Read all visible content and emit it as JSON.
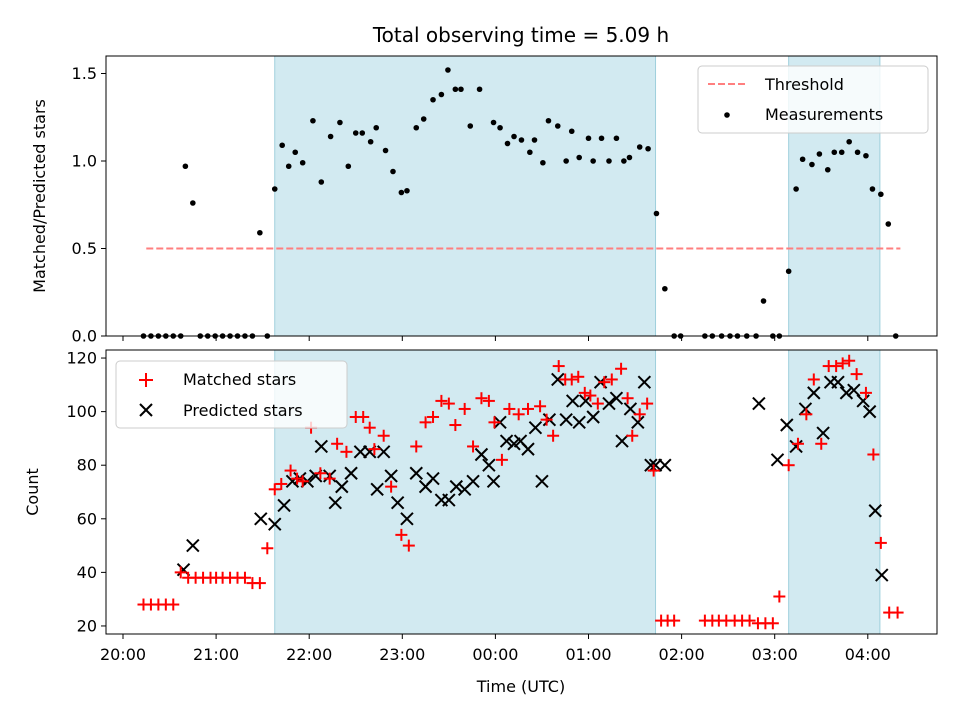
{
  "chart_data": [
    {
      "type": "scatter",
      "title": "Total observing time = 5.09 h",
      "ylabel": "Matched/Predicted stars",
      "xlabel": "",
      "xlim": [
        20.0,
        4.72
      ],
      "ylim": [
        0,
        1.6
      ],
      "yticks": [
        "0.0",
        "0.5",
        "1.0",
        "1.5"
      ],
      "observing_windows": [
        [
          21.63,
          1.72
        ],
        [
          3.15,
          4.13
        ]
      ],
      "shade_color": "#add8e6",
      "threshold": {
        "name": "Threshold",
        "value": 0.5,
        "x_start": 20.25,
        "x_end": 4.35,
        "color": "#ff7f7f",
        "style": "dashed"
      },
      "legend": {
        "placement": "top-right",
        "entries": [
          "Threshold",
          "Measurements"
        ]
      },
      "series": [
        {
          "name": "Measurements",
          "color": "#000000",
          "marker": "dot",
          "x": [
            20.22,
            20.3,
            20.38,
            20.46,
            20.54,
            20.62,
            20.67,
            20.75,
            20.83,
            20.91,
            20.99,
            21.07,
            21.15,
            21.23,
            21.31,
            21.39,
            21.47,
            21.55,
            21.63,
            21.71,
            21.78,
            21.85,
            21.93,
            22.04,
            22.13,
            22.23,
            22.33,
            22.42,
            22.5,
            22.57,
            22.66,
            22.72,
            22.82,
            22.9,
            22.99,
            23.05,
            23.15,
            23.23,
            23.33,
            23.42,
            23.49,
            23.57,
            23.63,
            23.73,
            23.83,
            23.98,
            0.05,
            0.13,
            0.2,
            0.28,
            0.37,
            0.42,
            0.51,
            0.57,
            0.67,
            0.76,
            0.82,
            0.9,
            1.0,
            1.05,
            1.14,
            1.22,
            1.3,
            1.38,
            1.44,
            1.55,
            1.64,
            1.73,
            1.82,
            1.92,
            1.99,
            2.25,
            2.33,
            2.43,
            2.52,
            2.6,
            2.7,
            2.8,
            2.88,
            2.98,
            3.05,
            3.15,
            3.23,
            3.3,
            3.4,
            3.48,
            3.57,
            3.64,
            3.72,
            3.8,
            3.89,
            3.98,
            4.05,
            4.14,
            4.22,
            4.3
          ],
          "y": [
            0.0,
            0.0,
            0.0,
            0.0,
            0.0,
            0.0,
            0.97,
            0.76,
            0.0,
            0.0,
            0.0,
            0.0,
            0.0,
            0.0,
            0.0,
            0.0,
            0.59,
            0.0,
            0.84,
            1.09,
            0.97,
            1.05,
            0.99,
            1.23,
            0.88,
            1.14,
            1.22,
            0.97,
            1.16,
            1.16,
            1.11,
            1.19,
            1.06,
            0.94,
            0.82,
            0.83,
            1.19,
            1.24,
            1.35,
            1.38,
            1.52,
            1.41,
            1.41,
            1.2,
            1.41,
            1.22,
            1.19,
            1.1,
            1.14,
            1.12,
            1.05,
            1.12,
            0.99,
            1.23,
            1.2,
            1.0,
            1.17,
            1.02,
            1.13,
            1.0,
            1.13,
            1.0,
            1.13,
            1.0,
            1.02,
            1.08,
            1.07,
            0.7,
            0.27,
            0.0,
            0.0,
            0.0,
            0.0,
            0.0,
            0.0,
            0.0,
            0.0,
            0.0,
            0.2,
            0.0,
            0.0,
            0.37,
            0.84,
            1.01,
            0.98,
            1.04,
            0.95,
            1.05,
            1.05,
            1.11,
            1.05,
            1.03,
            0.84,
            0.81,
            0.64,
            0.0
          ]
        }
      ]
    },
    {
      "type": "scatter",
      "title": "",
      "xlabel": "Time (UTC)",
      "ylabel": "Count",
      "xlim": [
        20.0,
        4.72
      ],
      "ylim": [
        17,
        123
      ],
      "yticks": [
        "20",
        "40",
        "60",
        "80",
        "100",
        "120"
      ],
      "xticks": [
        "20:00",
        "21:00",
        "22:00",
        "23:00",
        "00:00",
        "01:00",
        "02:00",
        "03:00",
        "04:00"
      ],
      "observing_windows": [
        [
          21.63,
          1.72
        ],
        [
          3.15,
          4.13
        ]
      ],
      "shade_color": "#add8e6",
      "legend": {
        "placement": "top-left",
        "entries": [
          "Matched stars",
          "Predicted stars"
        ]
      },
      "series": [
        {
          "name": "Matched stars",
          "color": "#ff0000",
          "marker": "plus",
          "x": [
            20.22,
            20.3,
            20.38,
            20.46,
            20.54,
            20.62,
            20.7,
            20.78,
            20.86,
            20.94,
            21.0,
            21.07,
            21.15,
            21.23,
            21.31,
            21.39,
            21.47,
            21.55,
            21.63,
            21.7,
            21.8,
            21.87,
            21.93,
            22.02,
            22.12,
            22.22,
            22.3,
            22.4,
            22.5,
            22.58,
            22.65,
            22.7,
            22.8,
            22.88,
            22.99,
            23.07,
            23.15,
            23.25,
            23.33,
            23.42,
            23.5,
            23.57,
            23.67,
            23.76,
            23.85,
            23.93,
            23.99,
            0.07,
            0.15,
            0.25,
            0.35,
            0.48,
            0.55,
            0.62,
            0.68,
            0.75,
            0.82,
            0.89,
            0.96,
            1.02,
            1.1,
            1.17,
            1.25,
            1.35,
            1.42,
            1.47,
            1.55,
            1.63,
            1.7,
            1.78,
            1.85,
            1.92,
            2.25,
            2.33,
            2.4,
            2.48,
            2.57,
            2.65,
            2.73,
            2.82,
            2.9,
            2.98,
            3.05,
            3.15,
            3.25,
            3.34,
            3.42,
            3.5,
            3.58,
            3.66,
            3.73,
            3.8,
            3.88,
            3.98,
            4.06,
            4.14,
            4.23,
            4.32
          ],
          "y": [
            28,
            28,
            28,
            28,
            28,
            40,
            38,
            38,
            38,
            38,
            38,
            38,
            38,
            38,
            38,
            36,
            36,
            49,
            71,
            73,
            78,
            75,
            74,
            94,
            77,
            75,
            88,
            85,
            98,
            98,
            94,
            86,
            91,
            72,
            54,
            50,
            87,
            96,
            98,
            104,
            103,
            95,
            101,
            87,
            105,
            104,
            96,
            82,
            101,
            99,
            101,
            102,
            97,
            91,
            117,
            112,
            112,
            113,
            107,
            106,
            103,
            111,
            112,
            116,
            105,
            91,
            99,
            103,
            78,
            22,
            22,
            22,
            22,
            22,
            22,
            22,
            22,
            22,
            22,
            21,
            21,
            21,
            31,
            80,
            88,
            99,
            112,
            88,
            117,
            117,
            118,
            119,
            114,
            107,
            84,
            51,
            25,
            25
          ]
        },
        {
          "name": "Predicted stars",
          "color": "#000000",
          "marker": "cross",
          "x": [
            20.65,
            20.75,
            21.48,
            21.63,
            21.73,
            21.82,
            21.9,
            21.98,
            22.07,
            22.13,
            22.22,
            22.28,
            22.35,
            22.45,
            22.55,
            22.65,
            22.73,
            22.8,
            22.88,
            22.95,
            23.05,
            23.15,
            23.25,
            23.33,
            23.42,
            23.5,
            23.58,
            23.67,
            23.76,
            23.85,
            23.93,
            23.98,
            0.05,
            0.12,
            0.2,
            0.27,
            0.35,
            0.43,
            0.5,
            0.58,
            0.67,
            0.76,
            0.83,
            0.9,
            0.97,
            1.05,
            1.13,
            1.22,
            1.3,
            1.36,
            1.45,
            1.53,
            1.6,
            1.67,
            1.72,
            1.82,
            2.83,
            3.03,
            3.13,
            3.23,
            3.33,
            3.42,
            3.52,
            3.6,
            3.68,
            3.77,
            3.85,
            3.95,
            4.02,
            4.08,
            4.15
          ],
          "y": [
            41,
            50,
            60,
            58,
            65,
            74,
            75,
            74,
            76,
            87,
            76,
            66,
            72,
            77,
            85,
            85,
            71,
            85,
            76,
            66,
            60,
            77,
            72,
            75,
            67,
            67,
            72,
            71,
            74,
            84,
            80,
            74,
            96,
            89,
            88,
            89,
            86,
            94,
            74,
            97,
            112,
            97,
            104,
            96,
            104,
            98,
            111,
            103,
            105,
            89,
            101,
            96,
            111,
            80,
            80,
            80,
            103,
            82,
            95,
            87,
            101,
            107,
            92,
            111,
            111,
            107,
            108,
            104,
            100,
            63,
            39
          ]
        }
      ]
    }
  ]
}
